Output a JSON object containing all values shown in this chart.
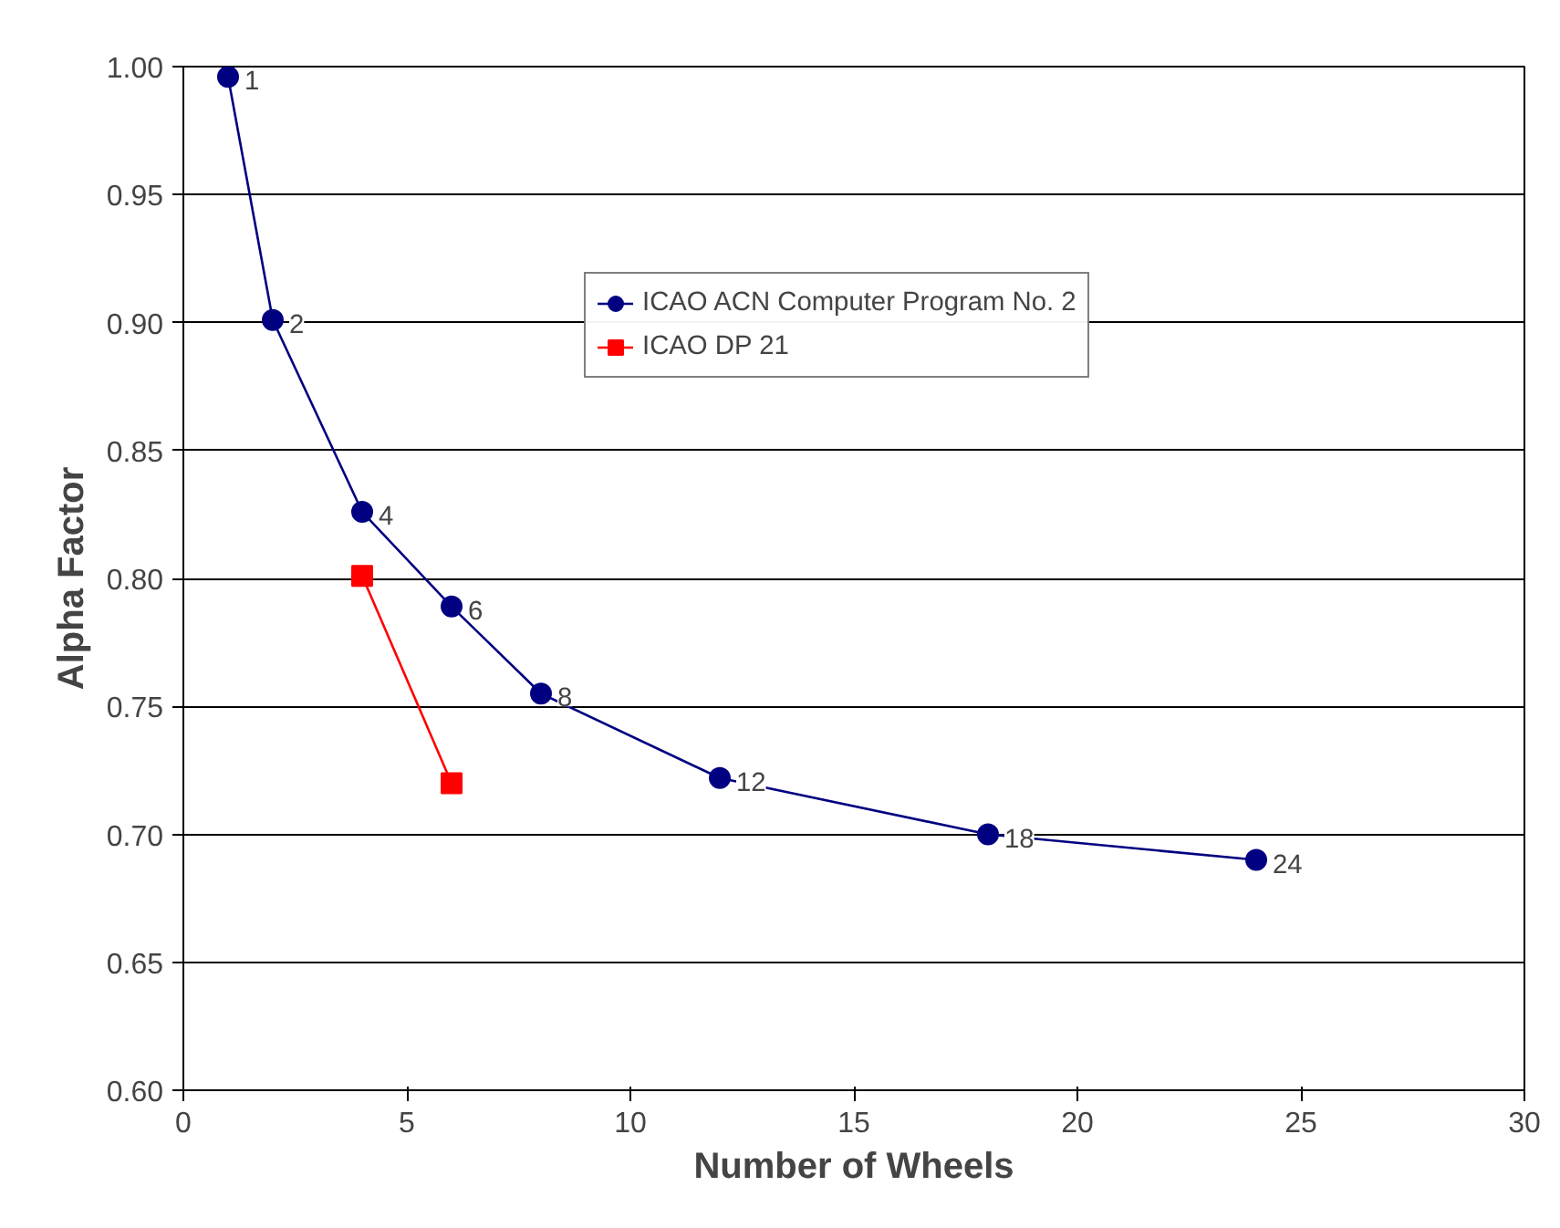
{
  "chart_data": {
    "type": "line",
    "xlabel": "Number of Wheels",
    "ylabel": "Alpha Factor",
    "series": [
      {
        "name": "ICAO ACN Computer Program No. 2",
        "color": "#000080",
        "marker": "circle",
        "x": [
          1,
          2,
          4,
          6,
          8,
          12,
          18,
          24
        ],
        "values": [
          0.996,
          0.901,
          0.826,
          0.789,
          0.755,
          0.722,
          0.7,
          0.69
        ]
      },
      {
        "name": "ICAO DP 21",
        "color": "#ff0000",
        "marker": "square",
        "x": [
          4,
          6
        ],
        "values": [
          0.801,
          0.72
        ]
      }
    ],
    "annotations": [
      {
        "text": "1",
        "x": 1,
        "y": 0.996
      },
      {
        "text": "2",
        "x": 2,
        "y": 0.901
      },
      {
        "text": "4",
        "x": 4,
        "y": 0.826
      },
      {
        "text": "6",
        "x": 6,
        "y": 0.789
      },
      {
        "text": "8",
        "x": 8,
        "y": 0.755
      },
      {
        "text": "12",
        "x": 12,
        "y": 0.722
      },
      {
        "text": "18",
        "x": 18,
        "y": 0.7
      },
      {
        "text": "24",
        "x": 24,
        "y": 0.69
      }
    ],
    "xlim": [
      0,
      30
    ],
    "xticks": [
      0,
      5,
      10,
      15,
      20,
      25,
      30
    ],
    "ylim": [
      0.6,
      1.0
    ],
    "yticks": [
      {
        "value": 0.6,
        "label": "0.60"
      },
      {
        "value": 0.65,
        "label": "0.65"
      },
      {
        "value": 0.7,
        "label": "0.70"
      },
      {
        "value": 0.75,
        "label": "0.75"
      },
      {
        "value": 0.8,
        "label": "0.80"
      },
      {
        "value": 0.85,
        "label": "0.85"
      },
      {
        "value": 0.9,
        "label": "0.90"
      },
      {
        "value": 0.95,
        "label": "0.95"
      },
      {
        "value": 1.0,
        "label": "1.00"
      }
    ],
    "grid": "y",
    "legend": "top right"
  }
}
